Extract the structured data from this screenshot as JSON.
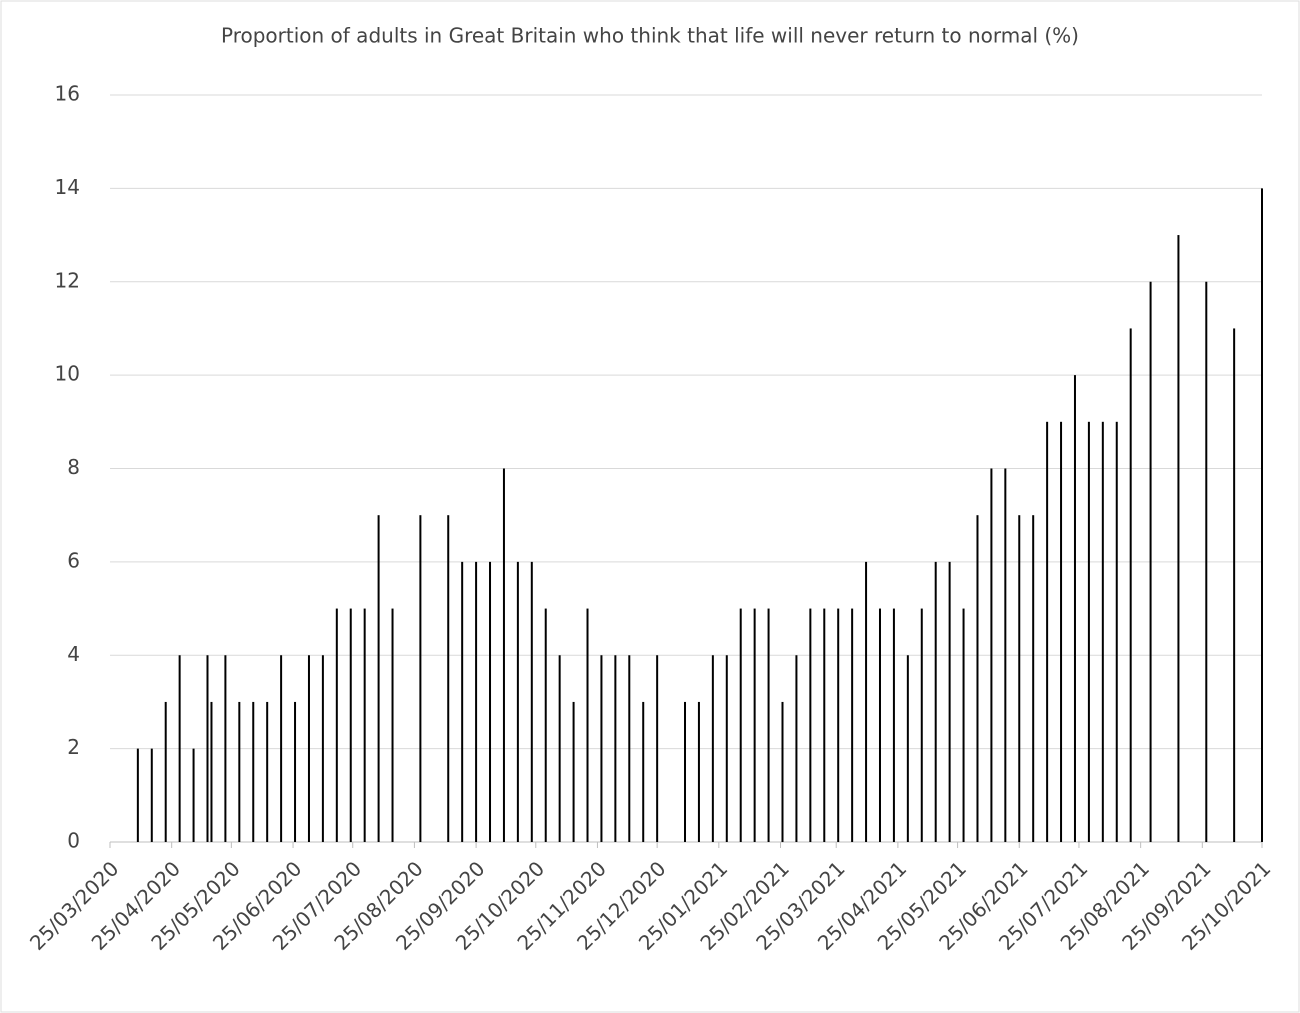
{
  "chart_data": {
    "type": "bar",
    "title": "Proportion of adults in Great Britain who think that life will never return to normal (%)",
    "x": [
      "08/04/2020",
      "15/04/2020",
      "22/04/2020",
      "29/04/2020",
      "06/05/2020",
      "13/05/2020",
      "15/05/2020",
      "22/05/2020",
      "29/05/2020",
      "05/06/2020",
      "12/06/2020",
      "19/06/2020",
      "26/06/2020",
      "03/07/2020",
      "10/07/2020",
      "17/07/2020",
      "24/07/2020",
      "31/07/2020",
      "07/08/2020",
      "14/08/2020",
      "28/08/2020",
      "11/09/2020",
      "18/09/2020",
      "25/09/2020",
      "02/10/2020",
      "09/10/2020",
      "16/10/2020",
      "23/10/2020",
      "30/10/2020",
      "06/11/2020",
      "13/11/2020",
      "20/11/2020",
      "27/11/2020",
      "04/12/2020",
      "11/12/2020",
      "18/12/2020",
      "25/12/2020",
      "08/01/2021",
      "15/01/2021",
      "22/01/2021",
      "29/01/2021",
      "05/02/2021",
      "12/02/2021",
      "19/02/2021",
      "26/02/2021",
      "05/03/2021",
      "12/03/2021",
      "19/03/2021",
      "26/03/2021",
      "02/04/2021",
      "09/04/2021",
      "16/04/2021",
      "23/04/2021",
      "30/04/2021",
      "07/05/2021",
      "14/05/2021",
      "21/05/2021",
      "28/05/2021",
      "04/06/2021",
      "11/06/2021",
      "18/06/2021",
      "25/06/2021",
      "02/07/2021",
      "09/07/2021",
      "16/07/2021",
      "23/07/2021",
      "30/07/2021",
      "06/08/2021",
      "13/08/2021",
      "20/08/2021",
      "30/08/2021",
      "13/09/2021",
      "27/09/2021",
      "11/10/2021",
      "25/10/2021"
    ],
    "values": [
      2,
      2,
      3,
      4,
      2,
      4,
      3,
      4,
      3,
      3,
      3,
      4,
      3,
      4,
      4,
      5,
      5,
      5,
      7,
      5,
      7,
      7,
      6,
      6,
      6,
      8,
      6,
      6,
      5,
      4,
      3,
      5,
      4,
      4,
      4,
      3,
      4,
      3,
      3,
      4,
      4,
      5,
      5,
      5,
      3,
      4,
      5,
      5,
      5,
      5,
      6,
      5,
      5,
      4,
      5,
      6,
      6,
      5,
      7,
      8,
      8,
      7,
      7,
      9,
      9,
      10,
      9,
      9,
      9,
      11,
      12,
      13,
      12,
      11,
      14
    ],
    "color": "#000000",
    "xlim": [
      "25/03/2020",
      "25/10/2021"
    ],
    "xticks": [
      "25/03/2020",
      "25/04/2020",
      "25/05/2020",
      "25/06/2020",
      "25/07/2020",
      "25/08/2020",
      "25/09/2020",
      "25/10/2020",
      "25/11/2020",
      "25/12/2020",
      "25/01/2021",
      "25/02/2021",
      "25/03/2021",
      "25/04/2021",
      "25/05/2021",
      "25/06/2021",
      "25/07/2021",
      "25/08/2021",
      "25/09/2021",
      "25/10/2021"
    ],
    "ylim": [
      0,
      16
    ],
    "yticks": [
      0,
      2,
      4,
      6,
      8,
      10,
      12,
      14,
      16
    ],
    "grid": true
  }
}
